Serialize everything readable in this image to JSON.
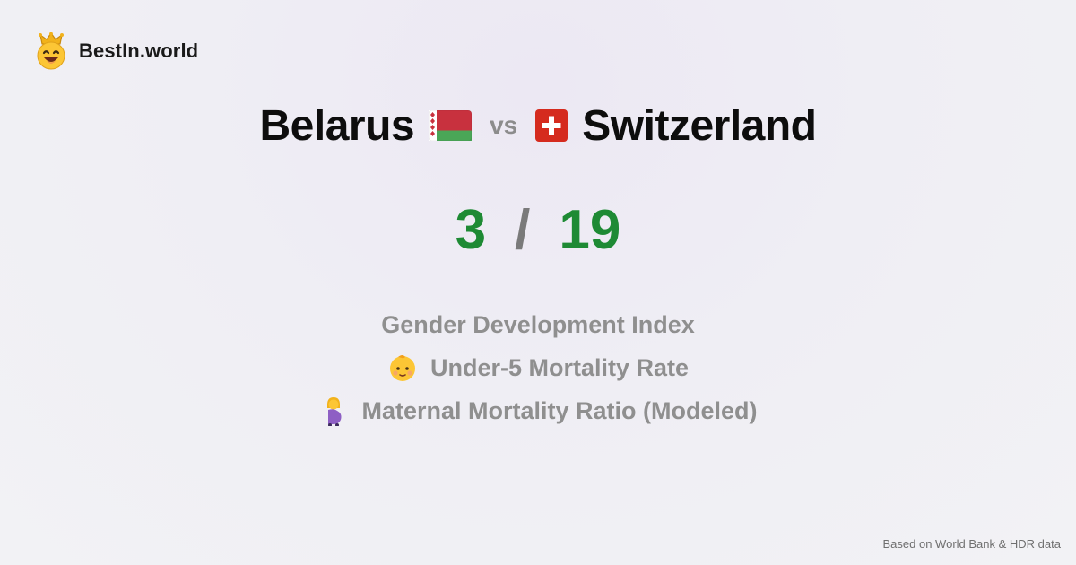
{
  "brand": {
    "name": "BestIn.world",
    "logo_icon": "crowned-smiley-icon"
  },
  "comparison": {
    "country_a": "Belarus",
    "vs_label": "vs",
    "country_b": "Switzerland",
    "flag_a_icon": "belarus-flag-icon",
    "flag_b_icon": "switzerland-flag-icon"
  },
  "score": {
    "value_a": "3",
    "separator": "/",
    "value_b": "19",
    "color": "#1e8a34"
  },
  "metrics": [
    {
      "label": "Gender Development Index",
      "icon": ""
    },
    {
      "label": "Under-5 Mortality Rate",
      "icon": "baby-icon"
    },
    {
      "label": "Maternal Mortality Ratio (Modeled)",
      "icon": "pregnant-woman-icon"
    }
  ],
  "footer": {
    "source": "Based on World Bank & HDR data"
  }
}
